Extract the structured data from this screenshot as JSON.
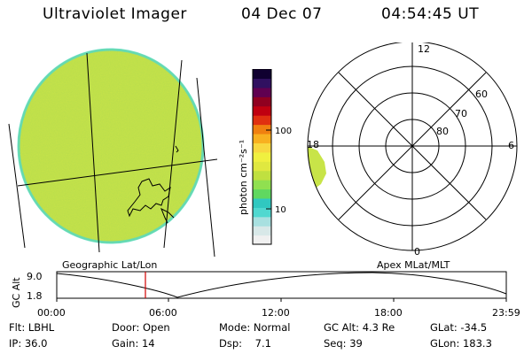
{
  "header": {
    "instrument": "Ultraviolet Imager",
    "date": "04 Dec 07",
    "time": "04:54:45 UT"
  },
  "colorbar": {
    "unit_label": "photon cm⁻²s⁻¹",
    "ticks": [
      "100",
      "10"
    ],
    "colors": [
      "#f0f0f0",
      "#d8e8e8",
      "#a8e0e0",
      "#50d8d0",
      "#30c8c0",
      "#60d860",
      "#90e050",
      "#c0e040",
      "#e0e840",
      "#f0f040",
      "#f8d840",
      "#f8b020",
      "#f08010",
      "#e03010",
      "#c00010",
      "#900020",
      "#600050",
      "#301060",
      "#100030"
    ]
  },
  "geo_panel": {
    "label": "Geographic Lat/Lon",
    "fill_color": "#c8e448",
    "edge_color": "#50d8c8"
  },
  "polar_panel": {
    "label": "Apex MLat/MLT",
    "mlt_labels": {
      "top": "12",
      "right": "6",
      "bottom": "0",
      "left": "18"
    },
    "lat_labels": [
      "60",
      "70",
      "80"
    ]
  },
  "timeline": {
    "y_axis_title": "GC Alt",
    "y_ticks": [
      "9.0",
      "1.8"
    ],
    "x_ticks": [
      "00:00",
      "06:00",
      "12:00",
      "18:00",
      "23:59"
    ],
    "marker_color": "#d00000"
  },
  "info": {
    "rows": [
      [
        {
          "label": "Flt:",
          "value": "LBHL"
        },
        {
          "label": "Door:",
          "value": "Open"
        },
        {
          "label": "Mode:",
          "value": "Normal"
        },
        {
          "label": "GC Alt:",
          "value": "4.3 Re"
        },
        {
          "label": "GLat:",
          "value": "-34.5"
        }
      ],
      [
        {
          "label": "IP:",
          "value": "36.0"
        },
        {
          "label": "Gain:",
          "value": "14"
        },
        {
          "label": "Dsp:",
          "value": "7.1"
        },
        {
          "label": "Seq:",
          "value": "39"
        },
        {
          "label": "GLon:",
          "value": "183.3"
        }
      ]
    ]
  }
}
